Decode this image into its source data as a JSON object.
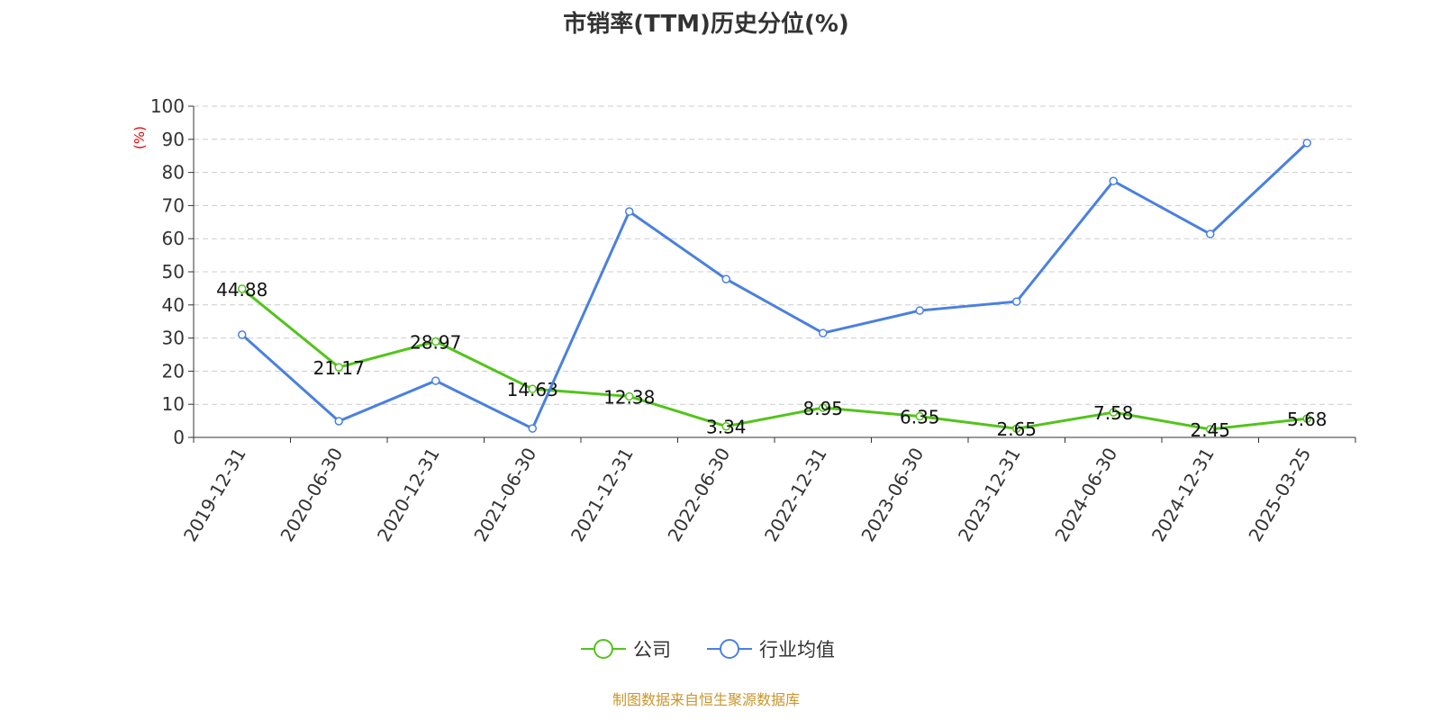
{
  "chart_data": {
    "type": "line",
    "title": "市销率(TTM)历史分位(%)",
    "ylabel": "(%)",
    "ylim": [
      0,
      100
    ],
    "yticks": [
      0,
      10,
      20,
      30,
      40,
      50,
      60,
      70,
      80,
      90,
      100
    ],
    "grid": true,
    "legend_placement": "bottom",
    "categories": [
      "2019-12-31",
      "2020-06-30",
      "2020-12-31",
      "2021-06-30",
      "2021-12-31",
      "2022-06-30",
      "2022-12-31",
      "2023-06-30",
      "2023-12-31",
      "2024-06-30",
      "2024-12-31",
      "2025-03-25"
    ],
    "series": [
      {
        "name": "公司",
        "color": "#52c41a",
        "labels": true,
        "values": [
          44.88,
          21.17,
          28.97,
          14.63,
          12.38,
          3.34,
          8.95,
          6.35,
          2.65,
          7.58,
          2.45,
          5.68
        ]
      },
      {
        "name": "行业均值",
        "color": "#4a80e0",
        "labels": false,
        "values": [
          31.0,
          4.9,
          17.1,
          2.7,
          68.2,
          47.8,
          31.5,
          38.3,
          41.0,
          77.4,
          61.4,
          88.9
        ]
      }
    ]
  },
  "source": "制图数据来自恒生聚源数据库"
}
